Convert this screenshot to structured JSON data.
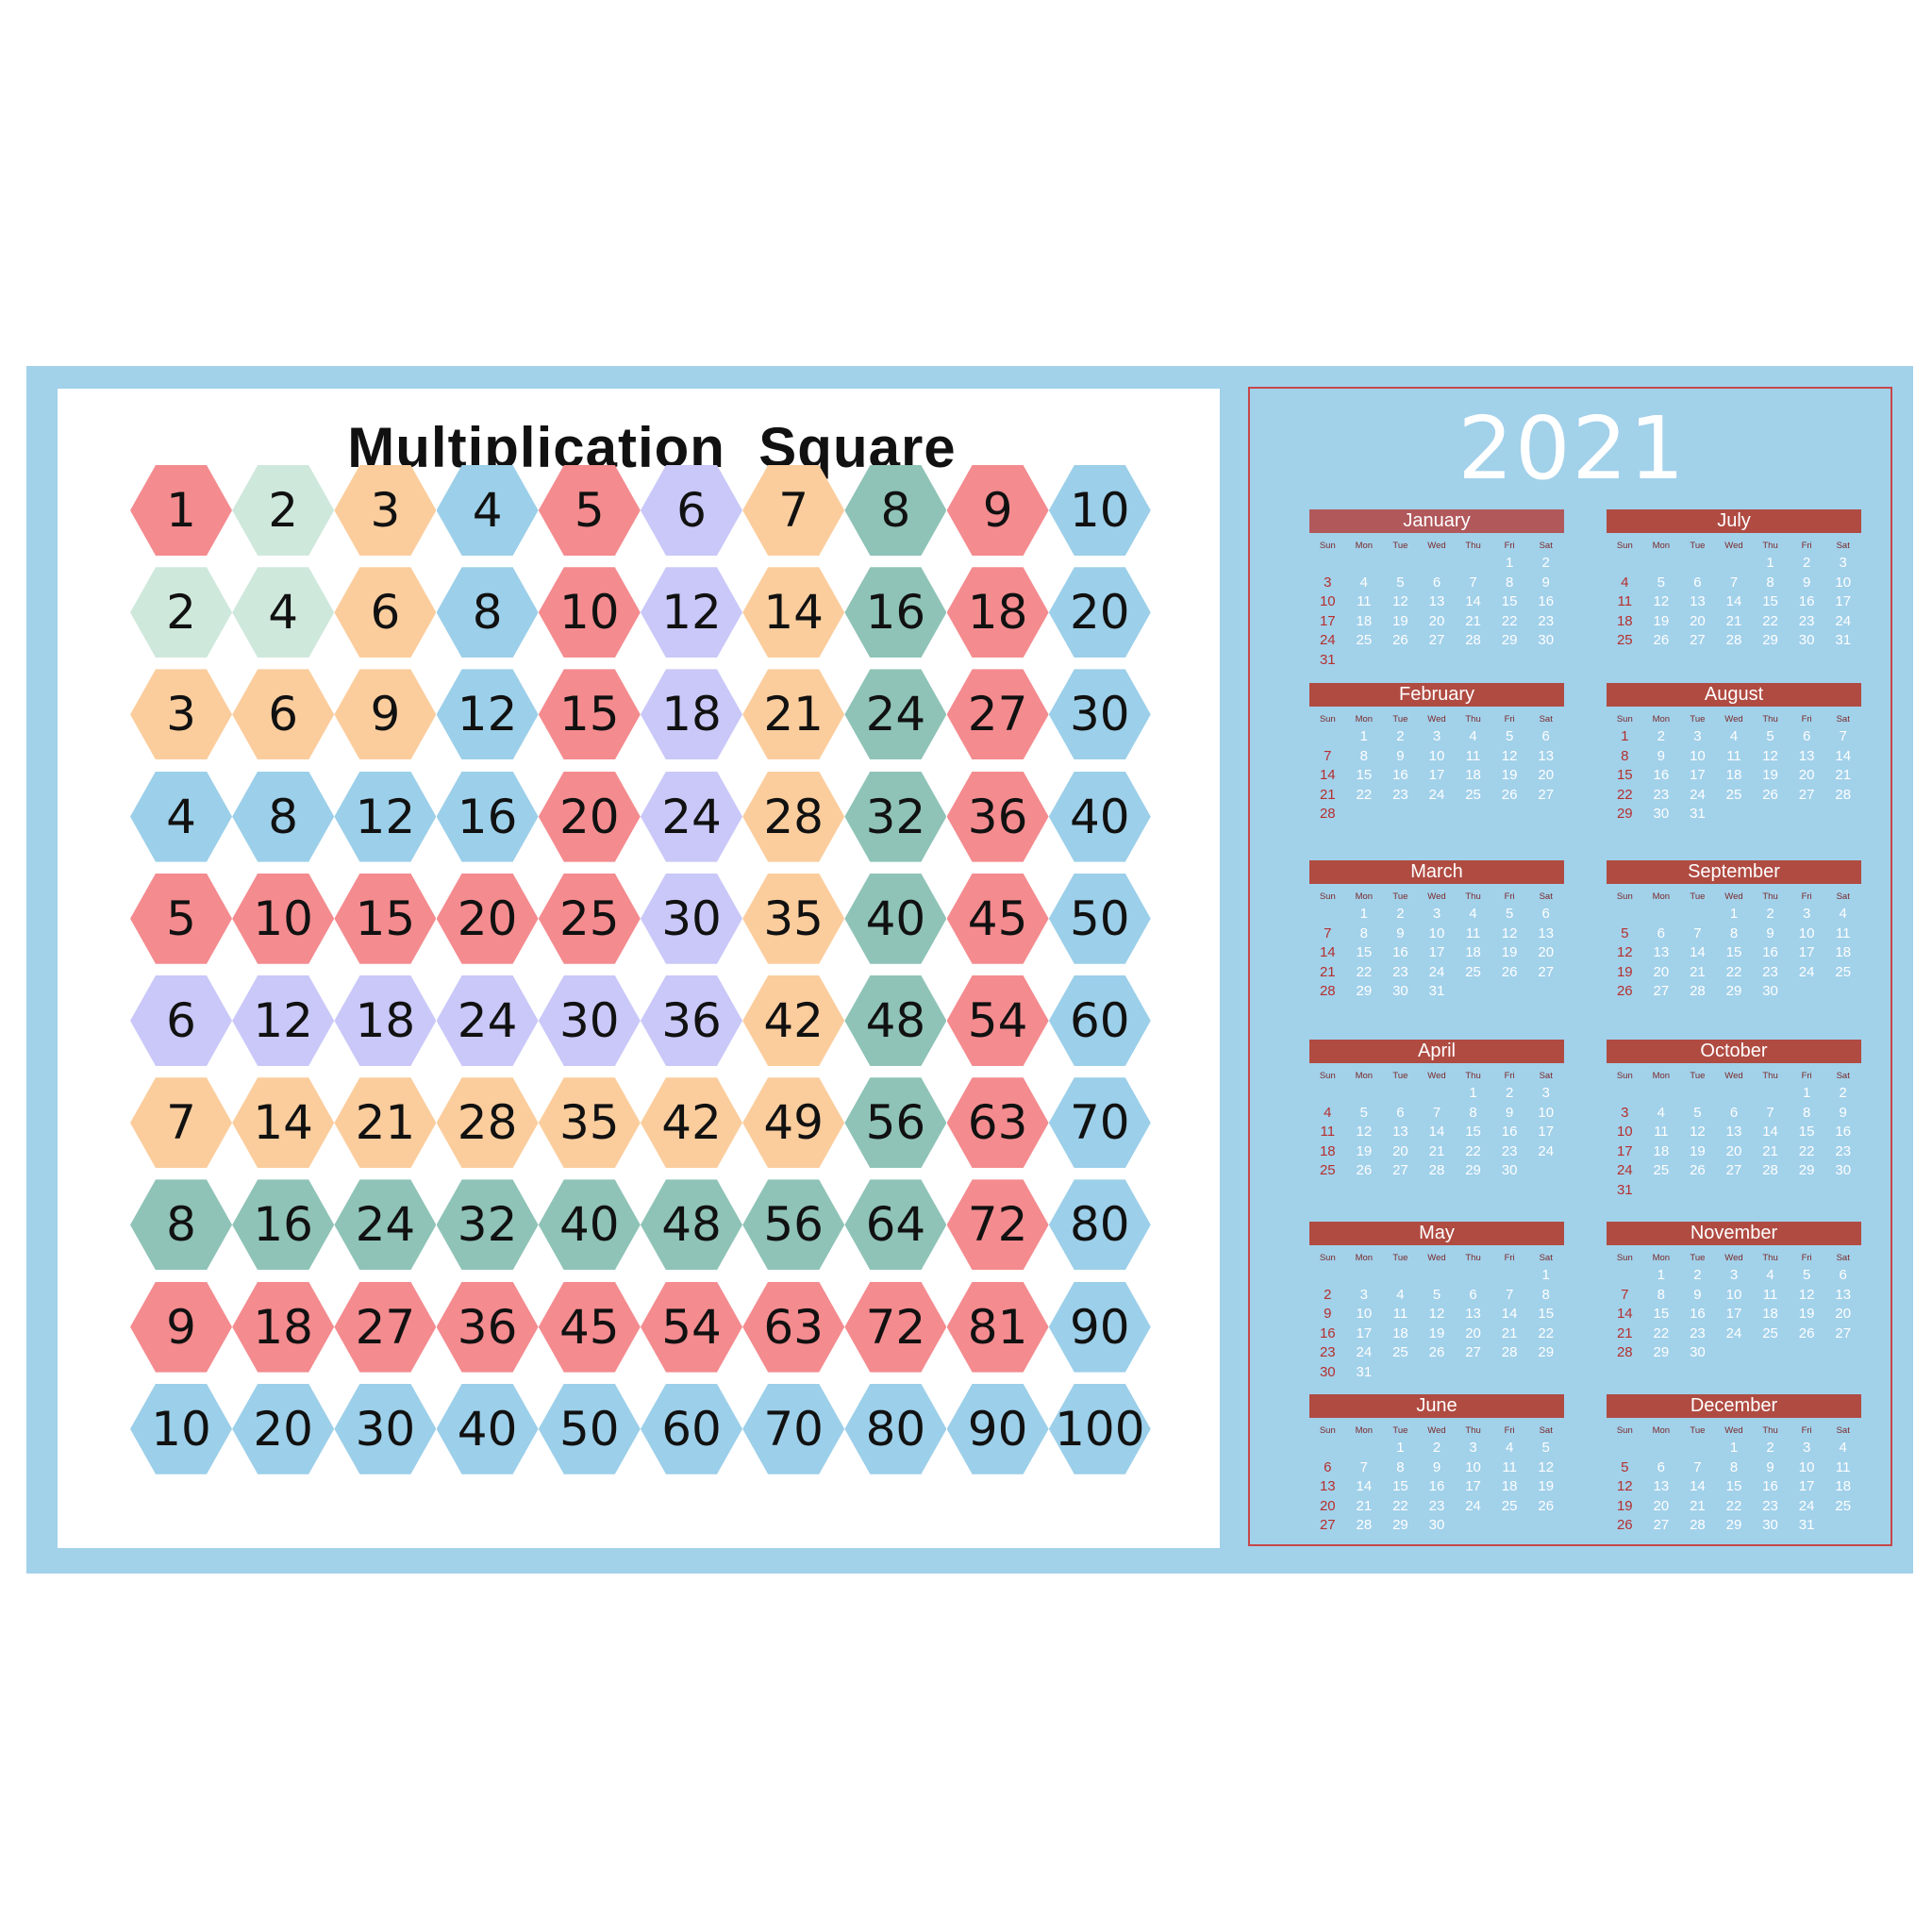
{
  "square": {
    "title": "Multiplication  Square",
    "rows": [
      [
        1,
        2,
        3,
        4,
        5,
        6,
        7,
        8,
        9,
        10
      ],
      [
        2,
        4,
        6,
        8,
        10,
        12,
        14,
        16,
        18,
        20
      ],
      [
        3,
        6,
        9,
        12,
        15,
        18,
        21,
        24,
        27,
        30
      ],
      [
        4,
        8,
        12,
        16,
        20,
        24,
        28,
        32,
        36,
        40
      ],
      [
        5,
        10,
        15,
        20,
        25,
        30,
        35,
        40,
        45,
        50
      ],
      [
        6,
        12,
        18,
        24,
        30,
        36,
        42,
        48,
        54,
        60
      ],
      [
        7,
        14,
        21,
        28,
        35,
        42,
        49,
        56,
        63,
        70
      ],
      [
        8,
        16,
        24,
        32,
        40,
        48,
        56,
        64,
        72,
        80
      ],
      [
        9,
        18,
        27,
        36,
        45,
        54,
        63,
        72,
        81,
        90
      ],
      [
        10,
        20,
        30,
        40,
        50,
        60,
        70,
        80,
        90,
        100
      ]
    ],
    "colors": {
      "red": "#f48b8f",
      "mint": "#cfe8dc",
      "peach": "#fbcd9d",
      "blue": "#9ccfe9",
      "lavender": "#c9c8f8",
      "teal": "#8fc3b7"
    },
    "cell_colors": [
      [
        "red",
        "mint",
        "peach",
        "blue",
        "red",
        "lavender",
        "peach",
        "teal",
        "red",
        "blue"
      ],
      [
        "mint",
        "mint",
        "peach",
        "blue",
        "red",
        "lavender",
        "peach",
        "teal",
        "red",
        "blue"
      ],
      [
        "peach",
        "peach",
        "peach",
        "blue",
        "red",
        "lavender",
        "peach",
        "teal",
        "red",
        "blue"
      ],
      [
        "blue",
        "blue",
        "blue",
        "blue",
        "red",
        "lavender",
        "peach",
        "teal",
        "red",
        "blue"
      ],
      [
        "red",
        "red",
        "red",
        "red",
        "red",
        "lavender",
        "peach",
        "teal",
        "red",
        "blue"
      ],
      [
        "lavender",
        "lavender",
        "lavender",
        "lavender",
        "lavender",
        "lavender",
        "peach",
        "teal",
        "red",
        "blue"
      ],
      [
        "peach",
        "peach",
        "peach",
        "peach",
        "peach",
        "peach",
        "peach",
        "teal",
        "red",
        "blue"
      ],
      [
        "teal",
        "teal",
        "teal",
        "teal",
        "teal",
        "teal",
        "teal",
        "teal",
        "red",
        "blue"
      ],
      [
        "red",
        "red",
        "red",
        "red",
        "red",
        "red",
        "red",
        "red",
        "red",
        "blue"
      ],
      [
        "blue",
        "blue",
        "blue",
        "blue",
        "blue",
        "blue",
        "blue",
        "blue",
        "blue",
        "blue"
      ]
    ]
  },
  "calendar": {
    "year": "2021",
    "day_names": [
      "Sun",
      "Mon",
      "Tue",
      "Wed",
      "Thu",
      "Fri",
      "Sat"
    ],
    "months": [
      {
        "name": "January",
        "start": 5,
        "days": 31
      },
      {
        "name": "February",
        "start": 1,
        "days": 28
      },
      {
        "name": "March",
        "start": 1,
        "days": 31
      },
      {
        "name": "April",
        "start": 4,
        "days": 30
      },
      {
        "name": "May",
        "start": 6,
        "days": 31
      },
      {
        "name": "June",
        "start": 2,
        "days": 30
      },
      {
        "name": "July",
        "start": 4,
        "days": 31
      },
      {
        "name": "August",
        "start": 0,
        "days": 31
      },
      {
        "name": "September",
        "start": 3,
        "days": 30
      },
      {
        "name": "October",
        "start": 5,
        "days": 31
      },
      {
        "name": "November",
        "start": 1,
        "days": 30
      },
      {
        "name": "December",
        "start": 3,
        "days": 31
      }
    ]
  }
}
